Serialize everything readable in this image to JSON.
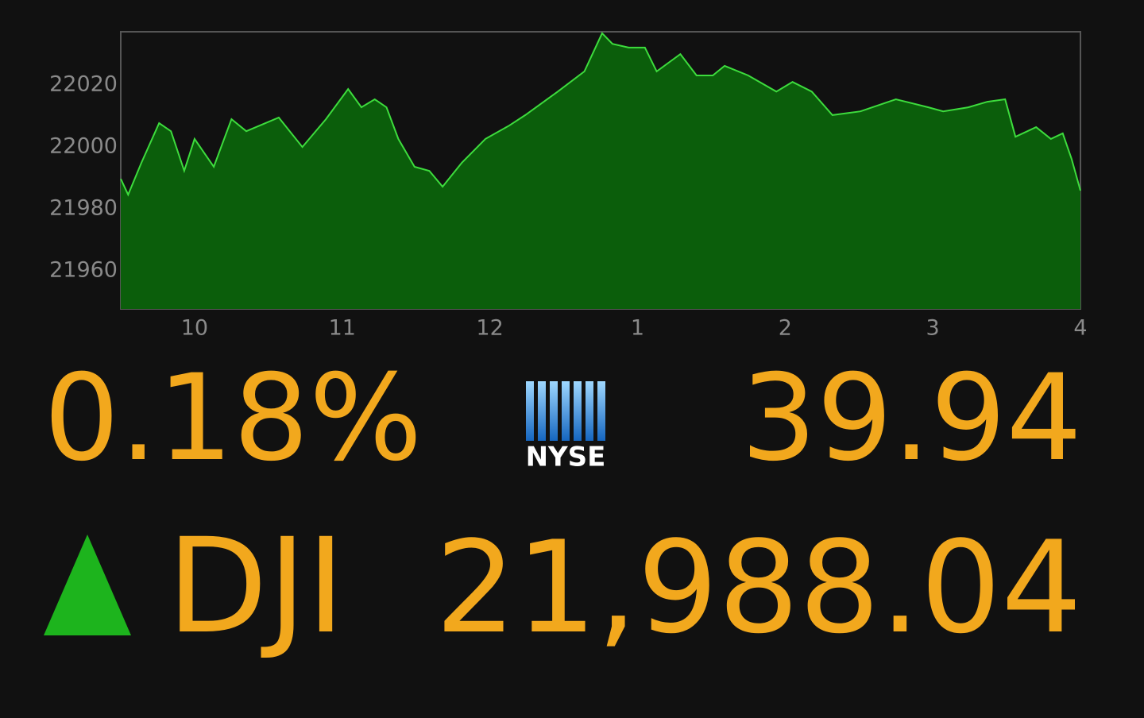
{
  "chart_data": {
    "type": "area",
    "x": [
      9.5,
      9.55,
      9.64,
      9.76,
      9.84,
      9.93,
      10.0,
      10.13,
      10.25,
      10.35,
      10.57,
      10.73,
      10.89,
      11.04,
      11.13,
      11.22,
      11.3,
      11.38,
      11.49,
      11.59,
      11.68,
      11.81,
      11.97,
      12.13,
      12.24,
      12.46,
      12.64,
      12.76,
      12.83,
      12.94,
      13.05,
      13.13,
      13.29,
      13.4,
      13.51,
      13.59,
      13.75,
      13.94,
      14.05,
      14.18,
      14.32,
      14.51,
      14.75,
      14.97,
      15.07,
      15.24,
      15.37,
      15.49,
      15.56,
      15.7,
      15.8,
      15.88,
      15.94,
      16.0
    ],
    "values": [
      21989.7,
      21984.6,
      21994.9,
      22007.7,
      22005.1,
      21992.3,
      22002.6,
      21993.6,
      22009.0,
      22005.1,
      22009.5,
      22000.0,
      22009.0,
      22018.7,
      22012.8,
      22015.4,
      22012.8,
      22002.6,
      21993.6,
      21992.3,
      21987.2,
      21994.9,
      22002.6,
      22006.9,
      22010.3,
      22017.9,
      22024.4,
      22036.7,
      22033.3,
      22032.1,
      22032.1,
      22024.4,
      22030.0,
      22023.1,
      22023.1,
      22026.2,
      22023.1,
      22017.9,
      22021.0,
      22017.9,
      22010.3,
      22011.5,
      22015.4,
      22012.8,
      22011.5,
      22012.8,
      22014.6,
      22015.4,
      22003.3,
      22006.4,
      22002.6,
      22004.4,
      21996.2,
      21985.9
    ],
    "color": "#0b5e0b",
    "line_color": "#3ddc3d",
    "xlim": [
      9.5,
      16
    ],
    "xticks": [
      10,
      11,
      12,
      {
        "value": 13,
        "label": "1"
      },
      {
        "value": 14,
        "label": "2"
      },
      {
        "value": 15,
        "label": "3"
      },
      {
        "value": 16,
        "label": "4"
      }
    ],
    "ylim": [
      21947.7,
      22037.2
    ],
    "yticks": [
      21960,
      21980,
      22000,
      22020
    ],
    "grid": false
  },
  "ticker": {
    "change_percent": "0.18%",
    "change_points": "39.94",
    "logo": "NYSE",
    "symbol": "DJI",
    "price": "21,988.04",
    "direction_color": "#1db41d"
  }
}
